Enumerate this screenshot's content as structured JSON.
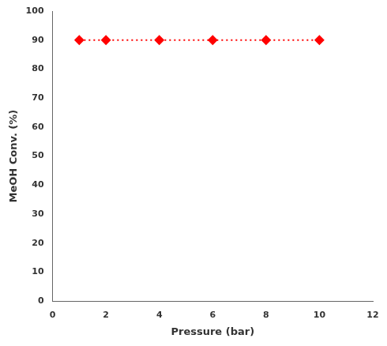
{
  "chart_data": {
    "type": "line",
    "x": [
      1,
      2,
      4,
      6,
      8,
      10
    ],
    "values": [
      90,
      90,
      90,
      90,
      90,
      90
    ],
    "color": "#FF0000",
    "marker": "diamond",
    "line_style": "dotted",
    "xlabel": "Pressure (bar)",
    "ylabel": "MeOH Conv. (%)",
    "xlim": [
      0,
      12
    ],
    "ylim": [
      0,
      100
    ],
    "xticks": [
      0,
      2,
      4,
      6,
      8,
      10,
      12
    ],
    "yticks": [
      0,
      10,
      20,
      30,
      40,
      50,
      60,
      70,
      80,
      90,
      100
    ],
    "grid": false
  }
}
